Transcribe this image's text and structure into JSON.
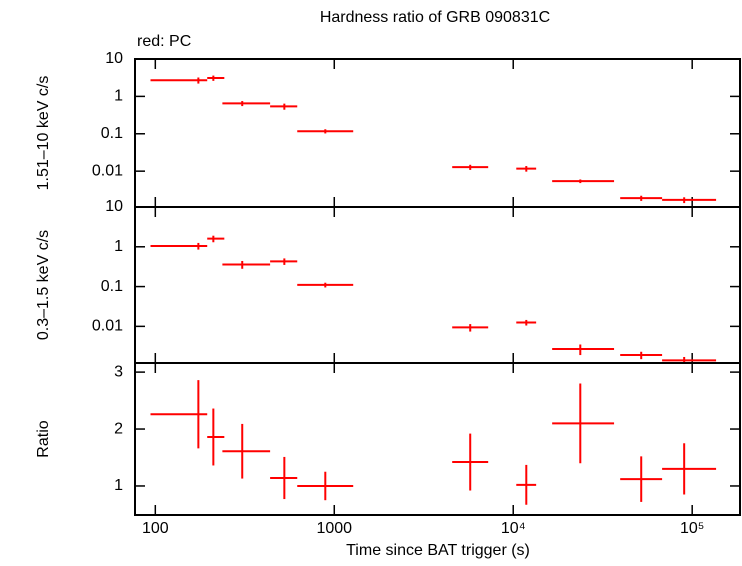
{
  "chart_data": [
    {
      "type": "errorbar",
      "title": "Hardness ratio of GRB 090831C",
      "annotation": "red: PC",
      "ylabel": "1.51–10 keV c/s",
      "color": "#ff0000",
      "log_x": true,
      "log_y": true,
      "xlim": [
        77,
        185000
      ],
      "ylim": [
        0.0011,
        10
      ],
      "yticks": [
        10,
        1,
        0.1,
        0.01
      ],
      "x": [
        174,
        211,
        306,
        526,
        891,
        5750,
        11830,
        23700,
        51900,
        90200
      ],
      "x_low": [
        94,
        195,
        237,
        438,
        621,
        4560,
        10400,
        16500,
        39600,
        67900
      ],
      "x_high": [
        195,
        243,
        438,
        621,
        1276,
        7245,
        13430,
        36600,
        67900,
        136000
      ],
      "values": [
        2.7,
        3.1,
        0.65,
        0.54,
        0.117,
        0.0128,
        0.0117,
        0.0054,
        0.0019,
        0.0017
      ],
      "yerr": [
        0.5,
        0.5,
        0.1,
        0.1,
        0.015,
        0.002,
        0.002,
        0.0006,
        0.0003,
        0.0003
      ]
    },
    {
      "type": "errorbar",
      "ylabel": "0.3–1.5 keV c/s",
      "color": "#ff0000",
      "log_x": true,
      "log_y": true,
      "xlim": [
        77,
        185000
      ],
      "ylim": [
        0.0012,
        10
      ],
      "yticks": [
        10,
        1,
        0.1,
        0.01
      ],
      "x": [
        174,
        211,
        306,
        526,
        891,
        5750,
        11830,
        23700,
        51900,
        90200
      ],
      "x_low": [
        94,
        195,
        237,
        438,
        621,
        4560,
        10400,
        16500,
        39600,
        67900
      ],
      "x_high": [
        195,
        243,
        438,
        621,
        1276,
        7245,
        13430,
        36600,
        67900,
        136000
      ],
      "values": [
        1.05,
        1.6,
        0.36,
        0.43,
        0.11,
        0.0094,
        0.0125,
        0.0027,
        0.0019,
        0.0014
      ],
      "yerr": [
        0.2,
        0.3,
        0.08,
        0.08,
        0.015,
        0.002,
        0.002,
        0.0008,
        0.0004,
        0.0003
      ]
    },
    {
      "type": "errorbar",
      "ylabel": "Ratio",
      "xlabel": "Time since BAT trigger (s)",
      "color": "#ff0000",
      "log_x": true,
      "log_y": false,
      "xlim": [
        77,
        185000
      ],
      "xticks": [
        100,
        1000,
        {
          "value": 10000,
          "label": "10⁴"
        },
        {
          "value": 100000,
          "label": "10⁵"
        }
      ],
      "ylim": [
        0.49,
        3.16
      ],
      "yticks": [
        1,
        2,
        3
      ],
      "x": [
        174,
        211,
        306,
        526,
        891,
        5750,
        11830,
        23700,
        51900,
        90200
      ],
      "x_low": [
        94,
        195,
        237,
        438,
        621,
        4560,
        10400,
        16500,
        39600,
        67900
      ],
      "x_high": [
        195,
        243,
        438,
        621,
        1276,
        7245,
        13430,
        36600,
        67900,
        136000
      ],
      "values": [
        2.26,
        1.86,
        1.61,
        1.14,
        1.0,
        1.42,
        1.02,
        2.1,
        1.12,
        1.3
      ],
      "yerr": [
        0.6,
        0.5,
        0.48,
        0.37,
        0.25,
        0.5,
        0.35,
        0.7,
        0.4,
        0.45
      ]
    }
  ]
}
